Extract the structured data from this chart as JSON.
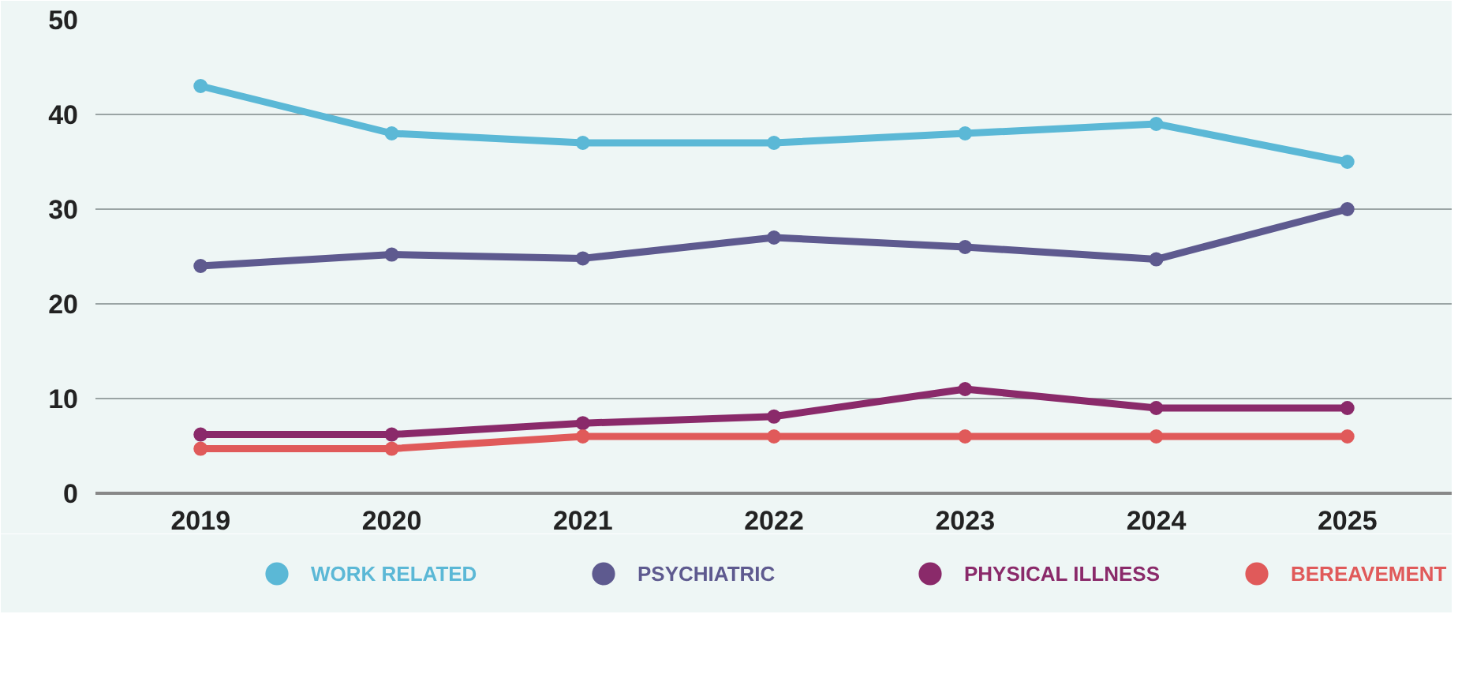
{
  "chart_data": {
    "type": "line",
    "categories": [
      "2019",
      "2020",
      "2021",
      "2022",
      "2023",
      "2024",
      "2025"
    ],
    "series": [
      {
        "name": "WORK RELATED",
        "color": "#5bb8d6",
        "values": [
          43,
          38,
          37,
          37,
          38,
          39,
          35
        ]
      },
      {
        "name": "PSYCHIATRIC",
        "color": "#5e5a8f",
        "values": [
          24,
          25.2,
          24.8,
          27,
          26,
          24.7,
          30
        ]
      },
      {
        "name": "PHYSICAL ILLNESS",
        "color": "#8a2a6a",
        "values": [
          6.2,
          6.2,
          7.4,
          8.1,
          11,
          9,
          9
        ]
      },
      {
        "name": "BEREAVEMENT",
        "color": "#e05a5a",
        "values": [
          4.7,
          4.7,
          6,
          6,
          6,
          6,
          6
        ]
      }
    ],
    "ylim": [
      0,
      50
    ],
    "yticks": [
      0,
      10,
      20,
      30,
      40,
      50
    ],
    "grid": "y",
    "legend": "bottom",
    "marker": "circle",
    "line_style": "solid"
  }
}
